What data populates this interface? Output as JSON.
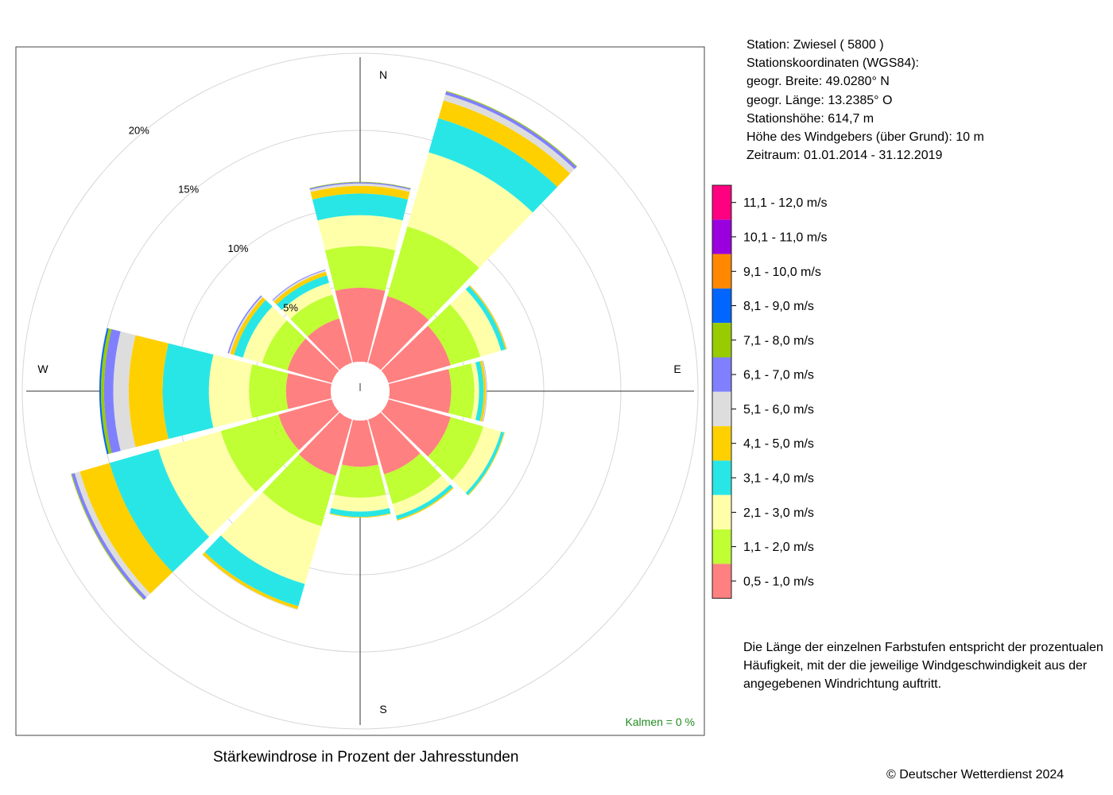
{
  "station": {
    "lines": [
      "Station:  Zwiesel  ( 5800 )",
      "Stationskoordinaten (WGS84):",
      "geogr. Breite: 49.0280° N",
      "geogr. Länge: 13.2385° O",
      "Stationshöhe: 614,7 m",
      "Höhe des Windgebers (über Grund): 10 m",
      "Zeitraum: 01.01.2014 - 31.12.2019"
    ]
  },
  "note": {
    "lines": [
      "Die Länge der einzelnen Farbstufen entspricht der prozentualen",
      "Häufigkeit, mit der die jeweilige Windgeschwindigkeit aus der",
      "angegebenen Windrichtung auftritt."
    ]
  },
  "footer": {
    "title": "Stärkewindrose in Prozent der Jahresstunden",
    "copyright": "© Deutscher Wetterdienst  2024"
  },
  "chart_data": {
    "type": "polar-stacked-bar",
    "title": "Stärkewindrose in Prozent der Jahresstunden",
    "calm_label": "Kalmen  =  0 %",
    "directions": [
      {
        "label": "N",
        "angle": 0
      },
      {
        "label": "E",
        "angle": 90
      },
      {
        "label": "S",
        "angle": 180
      },
      {
        "label": "W",
        "angle": 270
      }
    ],
    "radial_ticks": [
      {
        "value": 5,
        "label": "5%"
      },
      {
        "value": 10,
        "label": "10%"
      },
      {
        "value": 15,
        "label": "15%"
      },
      {
        "value": 20,
        "label": "20%"
      }
    ],
    "radial_range": [
      0,
      20
    ],
    "sector_angles": [
      0,
      30,
      60,
      90,
      120,
      150,
      180,
      210,
      240,
      270,
      300,
      330
    ],
    "speed_classes": [
      {
        "label": "0,5 - 1,0 m/s",
        "color": "#ff8080"
      },
      {
        "label": "1,1 - 2,0 m/s",
        "color": "#bfff33"
      },
      {
        "label": "2,1 - 3,0 m/s",
        "color": "#ffffaa"
      },
      {
        "label": "3,1 - 4,0 m/s",
        "color": "#29e6e6"
      },
      {
        "label": "4,1 - 5,0 m/s",
        "color": "#ffd000"
      },
      {
        "label": "5,1 - 6,0 m/s",
        "color": "#dddddd"
      },
      {
        "label": "6,1 - 7,0 m/s",
        "color": "#8080ff"
      },
      {
        "label": "7,1 - 8,0 m/s",
        "color": "#99cc00"
      },
      {
        "label": "8,1 - 9,0 m/s",
        "color": "#0066ff"
      },
      {
        "label": "9,1 - 10,0 m/s",
        "color": "#ff8800"
      },
      {
        "label": "10,1 - 11,0 m/s",
        "color": "#9900dd"
      },
      {
        "label": "11,1 - 12,0 m/s",
        "color": "#ff0080"
      }
    ],
    "sectors": [
      [
        4.8,
        2.7,
        2.0,
        1.4,
        0.5,
        0.15,
        0.08,
        0.03,
        0,
        0,
        0,
        0
      ],
      [
        4.5,
        4.7,
        5.0,
        2.3,
        1.2,
        0.4,
        0.2,
        0.05,
        0,
        0,
        0,
        0
      ],
      [
        4.2,
        2.0,
        1.4,
        0.3,
        0.08,
        0.03,
        0,
        0,
        0,
        0,
        0,
        0
      ],
      [
        4.0,
        1.5,
        0.3,
        0.3,
        0.15,
        0.05,
        0.02,
        0,
        0,
        0,
        0,
        0
      ],
      [
        4.2,
        2.2,
        1.2,
        0.2,
        0.05,
        0,
        0,
        0,
        0,
        0,
        0,
        0
      ],
      [
        3.7,
        2.0,
        0.8,
        0.25,
        0.08,
        0,
        0,
        0,
        0,
        0,
        0,
        0
      ],
      [
        3.0,
        2.0,
        0.9,
        0.35,
        0.05,
        0,
        0,
        0,
        0,
        0,
        0,
        0
      ],
      [
        3.8,
        3.4,
        3.9,
        1.5,
        0.2,
        0.05,
        0,
        0,
        0,
        0,
        0,
        0
      ],
      [
        3.6,
        3.9,
        4.2,
        3.3,
        2.0,
        0.35,
        0.2,
        0.05,
        0,
        0,
        0,
        0
      ],
      [
        2.9,
        2.4,
        2.6,
        3.0,
        2.2,
        1.0,
        0.6,
        0.2,
        0.1,
        0,
        0,
        0
      ],
      [
        3.0,
        1.7,
        1.3,
        0.6,
        0.25,
        0.1,
        0.08,
        0,
        0,
        0,
        0,
        0
      ],
      [
        3.0,
        1.6,
        0.8,
        0.5,
        0.25,
        0.1,
        0.05,
        0,
        0,
        0,
        0,
        0
      ]
    ]
  }
}
